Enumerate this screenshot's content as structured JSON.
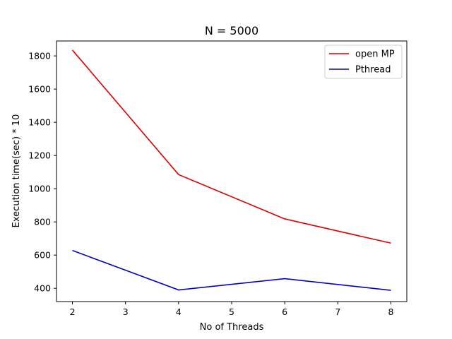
{
  "chart_data": {
    "type": "line",
    "title": "N = 5000",
    "xlabel": "No of Threads",
    "ylabel": "Execution time(sec) * 10",
    "x": [
      2,
      4,
      6,
      8
    ],
    "xlim": [
      1.7,
      8.3
    ],
    "ylim": [
      320,
      1890
    ],
    "xticks": [
      2,
      3,
      4,
      5,
      6,
      7,
      8
    ],
    "yticks": [
      400,
      600,
      800,
      1000,
      1200,
      1400,
      1600,
      1800
    ],
    "grid": false,
    "legend_position": "top-right",
    "series": [
      {
        "name": "open MP",
        "color": "#e00000",
        "values": [
          1835,
          1085,
          818,
          672
        ]
      },
      {
        "name": "Pthread",
        "color": "#0000cc",
        "values": [
          628,
          390,
          458,
          388
        ]
      }
    ]
  }
}
